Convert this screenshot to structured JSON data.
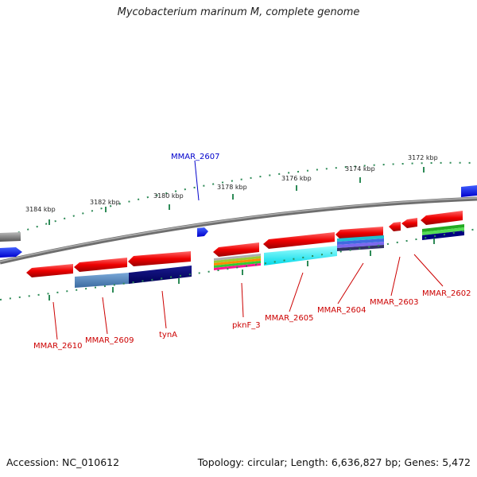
{
  "title": "Mycobacterium marinum M, complete genome",
  "footer": {
    "accession": "Accession: NC_010612",
    "summary": "Topology: circular; Length: 6,636,827 bp; Genes: 5,472"
  },
  "colors": {
    "forward_gene_label": "#0000cc",
    "reverse_gene_label": "#cc0000",
    "backbone": "#808080",
    "ticks": "#2e8b57"
  },
  "kbp_labels": [
    "3184 kbp",
    "3182 kbp",
    "3180 kbp",
    "3178 kbp",
    "3176 kbp",
    "3174 kbp",
    "3172 kbp"
  ],
  "gene_labels": [
    {
      "name": "MMAR_2607",
      "strand": "forward"
    },
    {
      "name": "MMAR_2610",
      "strand": "reverse"
    },
    {
      "name": "MMAR_2609",
      "strand": "reverse"
    },
    {
      "name": "tynA",
      "strand": "reverse"
    },
    {
      "name": "pknF_3",
      "strand": "reverse"
    },
    {
      "name": "MMAR_2605",
      "strand": "reverse"
    },
    {
      "name": "MMAR_2604",
      "strand": "reverse"
    },
    {
      "name": "MMAR_2603",
      "strand": "reverse"
    },
    {
      "name": "MMAR_2602",
      "strand": "reverse"
    }
  ]
}
